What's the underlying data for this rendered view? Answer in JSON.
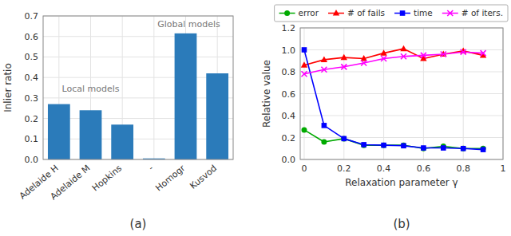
{
  "chart_data": [
    {
      "type": "bar",
      "title": "(a)",
      "categories": [
        "Adelaide H",
        "Adelaide M",
        "Hopkins",
        "-",
        "Homogr",
        "Kusvod"
      ],
      "values": [
        0.27,
        0.24,
        0.17,
        0.005,
        0.615,
        0.42
      ],
      "color": "#2b7bba",
      "ylabel": "Inlier ratio",
      "ylim": [
        0,
        0.7
      ],
      "yticks": [
        {
          "value": 0,
          "label": "0.0"
        },
        0.1,
        0.2,
        0.3,
        0.4,
        0.5,
        0.6,
        0.7
      ],
      "grid": true,
      "annotations": [
        {
          "text": "Local models",
          "x": 1.0,
          "y": 0.33
        },
        {
          "text": "Global models",
          "x": 4.1,
          "y": 0.645
        }
      ]
    },
    {
      "type": "line",
      "title": "(b)",
      "x": [
        0.0,
        0.1,
        0.2,
        0.3,
        0.4,
        0.5,
        0.6,
        0.7,
        0.8,
        0.9
      ],
      "series": [
        {
          "name": "error",
          "color": "#00aa00",
          "marker": "circle",
          "values": [
            0.27,
            0.16,
            0.19,
            0.13,
            0.13,
            0.13,
            0.1,
            0.12,
            0.1,
            0.1
          ]
        },
        {
          "name": "# of fails",
          "color": "#ff0000",
          "marker": "triangle",
          "values": [
            0.86,
            0.91,
            0.93,
            0.92,
            0.97,
            1.01,
            0.92,
            0.96,
            0.99,
            0.95
          ]
        },
        {
          "name": "time",
          "color": "#0000ff",
          "marker": "square",
          "values": [
            1.0,
            0.31,
            0.19,
            0.135,
            0.13,
            0.125,
            0.105,
            0.105,
            0.1,
            0.09
          ]
        },
        {
          "name": "# of iters.",
          "color": "#ff00ff",
          "marker": "x",
          "values": [
            0.78,
            0.82,
            0.845,
            0.88,
            0.92,
            0.94,
            0.95,
            0.96,
            0.98,
            0.97
          ]
        }
      ],
      "xlabel": "Relaxation parameter γ",
      "ylabel": "Relative value",
      "xlim": [
        -0.02,
        1.0
      ],
      "xticks": [
        0,
        0.2,
        0.4,
        0.6,
        0.8,
        1
      ],
      "ylim": [
        0,
        1.2
      ],
      "yticks": [
        {
          "value": 0,
          "label": "0.0"
        },
        0.2,
        0.4,
        0.6,
        0.8,
        {
          "value": 1,
          "label": "1.0"
        },
        1.2
      ],
      "grid": true,
      "legend": "top"
    }
  ]
}
